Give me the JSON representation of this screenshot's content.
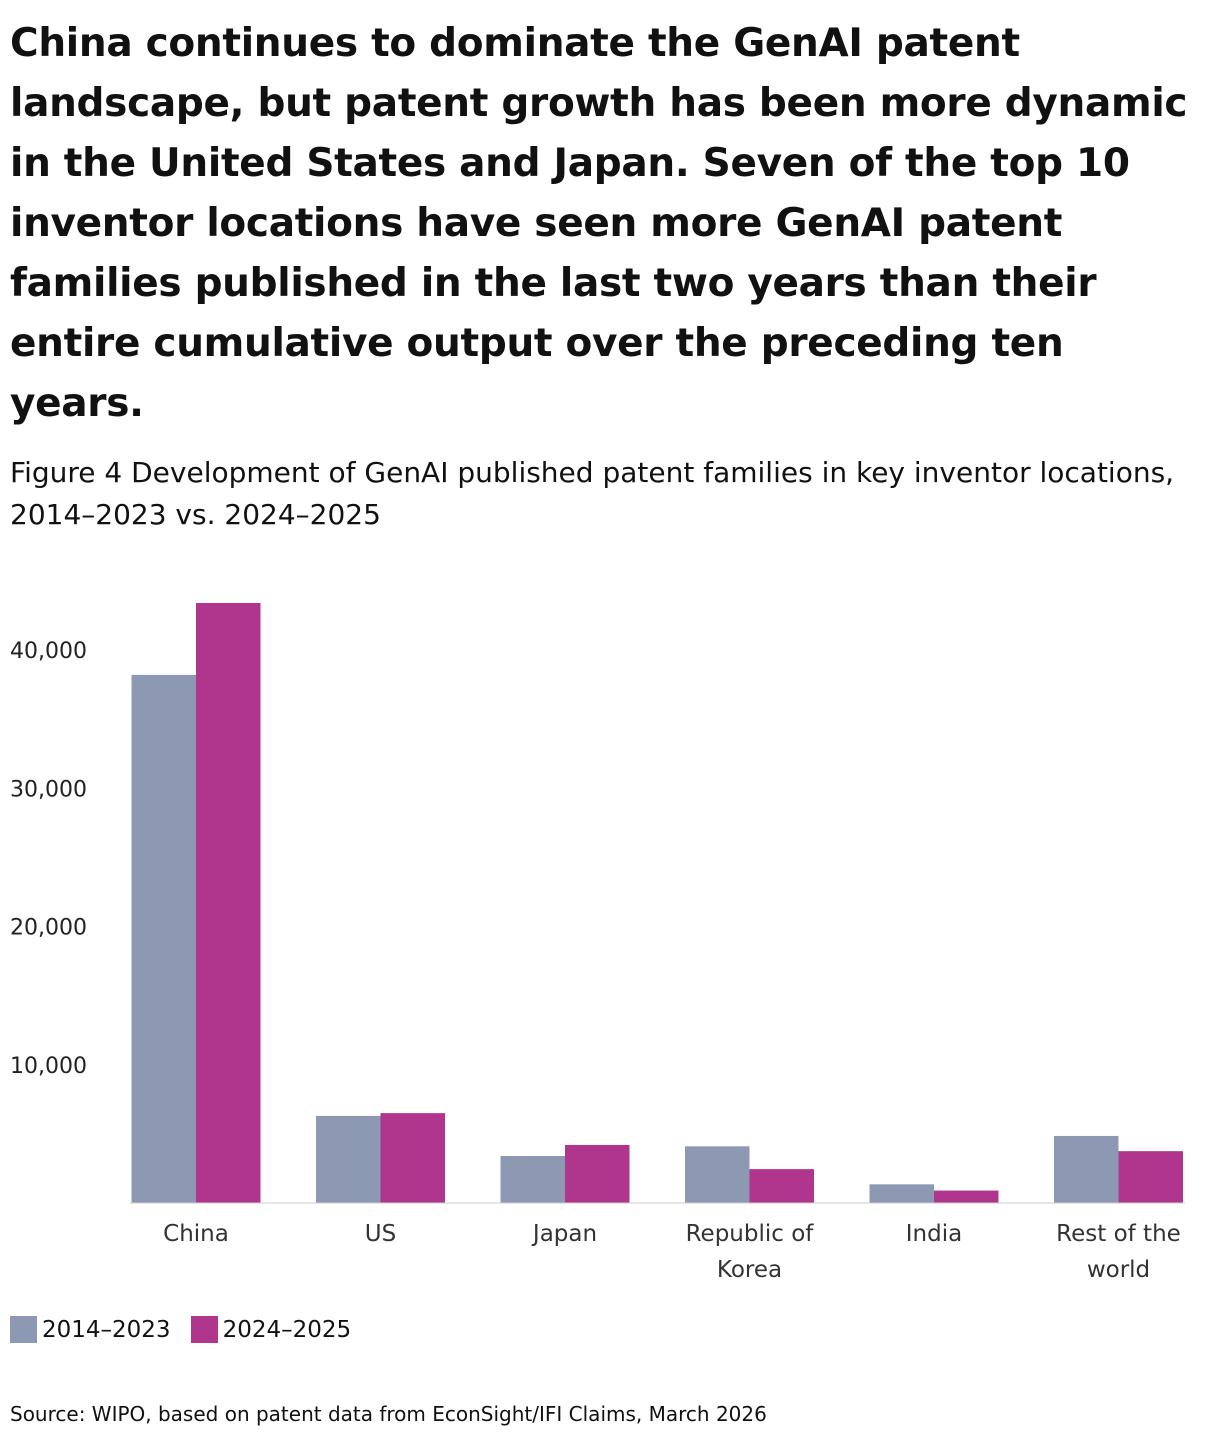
{
  "headline": "China continues to dominate the GenAI patent landscape, but patent growth has been more dynamic in the United States and Japan. Seven of the top 10 inventor locations have seen more GenAI patent families published in the last two years than their entire cumulative output over the preceding ten years.",
  "subtitle": "Figure 4 Development of GenAI published patent families in key inventor locations, 2014–2023 vs. 2024–2025",
  "source": "Source: WIPO, based on patent data from EconSight/IFI Claims, March 2026",
  "colors": {
    "series_2014_2023": "#8d98b3",
    "series_2024_2025": "#b0368d"
  },
  "legend": {
    "series_1": "2014–2023",
    "series_2": "2024–2025"
  },
  "chart_data": {
    "type": "bar",
    "categories": [
      "China",
      "US",
      "Japan",
      "Republic of Korea",
      "India",
      "Rest of the world"
    ],
    "category_lines": [
      [
        "China"
      ],
      [
        "US"
      ],
      [
        "Japan"
      ],
      [
        "Republic of",
        "Korea"
      ],
      [
        "India"
      ],
      [
        "Rest of the",
        "world"
      ]
    ],
    "series": [
      {
        "name": "2014–2023",
        "values": [
          38200,
          6300,
          3400,
          4100,
          1350,
          4850
        ]
      },
      {
        "name": "2024–2025",
        "values": [
          43400,
          6500,
          4200,
          2450,
          900,
          3750
        ]
      }
    ],
    "y_ticks": [
      10000,
      20000,
      30000,
      40000
    ],
    "y_tick_labels": [
      "10,000",
      "20,000",
      "30,000",
      "40,000"
    ],
    "ylim": [
      0,
      45000
    ],
    "grid": false,
    "legend_position": "bottom-left"
  }
}
